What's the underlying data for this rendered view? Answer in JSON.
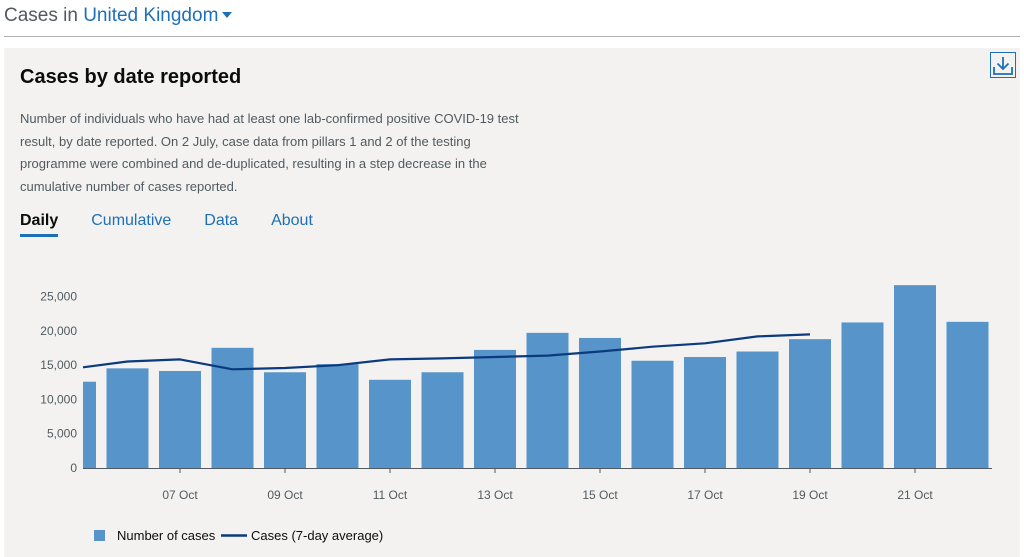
{
  "header": {
    "prefix": "Cases in",
    "location": "United Kingdom"
  },
  "card": {
    "title": "Cases by date reported",
    "description": "Number of individuals who have had at least one lab-confirmed positive COVID-19 test result, by date reported. On 2 July, case data from pillars 1 and 2 of the testing programme were combined and de-duplicated, resulting in a step decrease in the cumulative number of cases reported.",
    "download_icon": "download-icon",
    "tabs": [
      {
        "label": "Daily",
        "active": true
      },
      {
        "label": "Cumulative",
        "active": false
      },
      {
        "label": "Data",
        "active": false
      },
      {
        "label": "About",
        "active": false
      }
    ]
  },
  "colors": {
    "bar": "#5694ca",
    "line": "#0b3a7e",
    "link": "#1d70b8"
  },
  "chart_data": {
    "type": "bar",
    "categories": [
      "05 Oct",
      "06 Oct",
      "07 Oct",
      "08 Oct",
      "09 Oct",
      "10 Oct",
      "11 Oct",
      "12 Oct",
      "13 Oct",
      "14 Oct",
      "15 Oct",
      "16 Oct",
      "17 Oct",
      "18 Oct",
      "19 Oct",
      "20 Oct",
      "21 Oct",
      "22 Oct"
    ],
    "x_tick_labels": [
      "07 Oct",
      "09 Oct",
      "11 Oct",
      "13 Oct",
      "15 Oct",
      "17 Oct",
      "19 Oct",
      "21 Oct"
    ],
    "series": [
      {
        "name": "Number of cases",
        "type": "bar",
        "values": [
          12594,
          14542,
          14162,
          17540,
          13972,
          15166,
          12872,
          13972,
          17234,
          19724,
          18980,
          15650,
          16196,
          17000,
          18804,
          21242,
          26688,
          21330
        ]
      },
      {
        "name": "Cases (7-day average)",
        "type": "line",
        "values": [
          14700,
          15550,
          15850,
          14400,
          14600,
          15000,
          15850,
          16000,
          16200,
          16400,
          17000,
          17700,
          18200,
          19200,
          19500,
          null,
          null,
          null
        ]
      }
    ],
    "y_ticks": [
      "0",
      "5,000",
      "10,000",
      "15,000",
      "20,000",
      "25,000"
    ],
    "ylim": [
      0,
      27000
    ],
    "legend_position": "bottom-left",
    "grid": false
  }
}
